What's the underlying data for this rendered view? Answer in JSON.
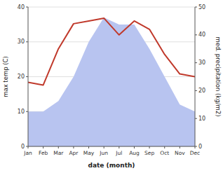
{
  "chart_data": {
    "type": "line",
    "categories": [
      "Jan",
      "Feb",
      "Mar",
      "Apr",
      "May",
      "Jun",
      "Jul",
      "Aug",
      "Sep",
      "Oct",
      "Nov",
      "Dec"
    ],
    "series": [
      {
        "type": "area",
        "color": "#b8c4f0",
        "values": [
          10,
          10,
          13,
          20,
          30,
          37,
          35,
          35,
          28,
          20,
          12,
          10
        ]
      },
      {
        "type": "line",
        "color": "#c0392b",
        "axis": "y2",
        "values": [
          23,
          22,
          35,
          44,
          45,
          46,
          40,
          45,
          42,
          33,
          26,
          25
        ]
      }
    ],
    "ylim": [
      0,
      40
    ],
    "yticks": [
      0,
      10,
      20,
      30,
      40
    ],
    "y2lim": [
      0,
      50
    ],
    "y2ticks": [
      0,
      10,
      20,
      30,
      40,
      50
    ],
    "xlabel": "date (month)",
    "ylabel": "max temp (C)",
    "y2label": "med. precipitation (kg/m2)",
    "grid": true
  }
}
